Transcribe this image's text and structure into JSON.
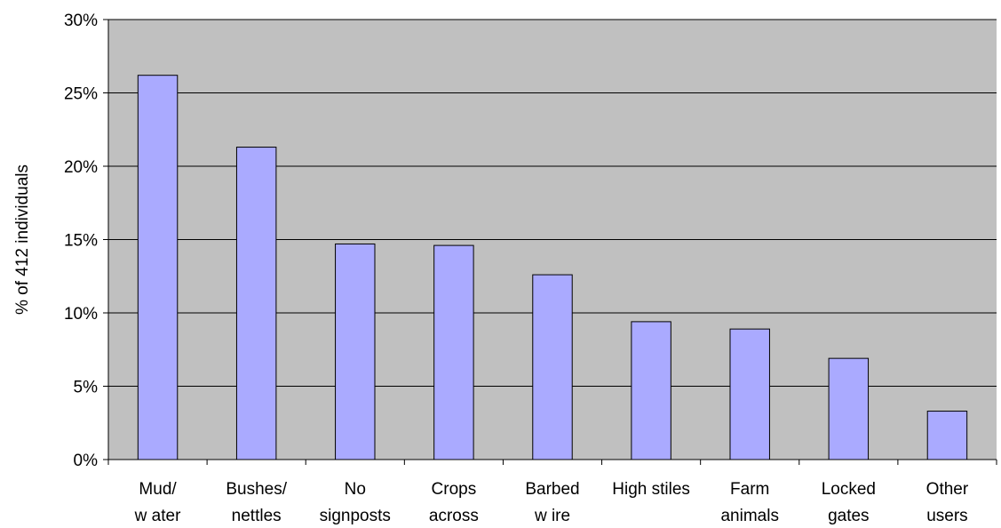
{
  "chart_data": {
    "type": "bar",
    "title": "",
    "xlabel": "",
    "ylabel": "% of 412 individuals",
    "ylim": [
      0,
      30
    ],
    "yticks": [
      0,
      5,
      10,
      15,
      20,
      25,
      30
    ],
    "ytick_labels": [
      "0%",
      "5%",
      "10%",
      "15%",
      "20%",
      "25%",
      "30%"
    ],
    "categories": [
      [
        "Mud/",
        "w ater"
      ],
      [
        "Bushes/",
        "nettles"
      ],
      [
        "No",
        "signposts"
      ],
      [
        "Crops",
        "across"
      ],
      [
        "Barbed",
        "w ire"
      ],
      [
        "High stiles"
      ],
      [
        "Farm",
        "animals"
      ],
      [
        "Locked",
        "gates"
      ],
      [
        "Other",
        "users"
      ]
    ],
    "values": [
      26.2,
      21.3,
      14.7,
      14.6,
      12.6,
      9.4,
      8.9,
      6.9,
      3.3
    ],
    "grid": true,
    "legend": "none",
    "colors": {
      "bar_fill": "#aaaaff",
      "bar_stroke": "#000000",
      "plot_background": "#c0c0c0",
      "grid": "#000000"
    }
  }
}
